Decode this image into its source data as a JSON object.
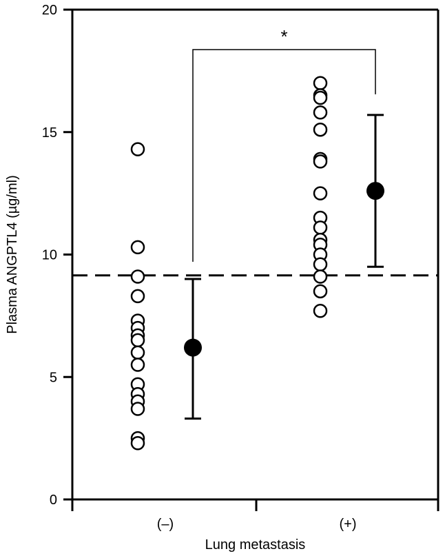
{
  "chart_data": {
    "type": "scatter",
    "title": "",
    "xlabel": "Lung metastasis",
    "ylabel": "Plasma ANGPTL4 (µg/ml)",
    "ylim": [
      0,
      20
    ],
    "yticks": [
      "0",
      "5",
      "10",
      "15",
      "20"
    ],
    "categories": [
      "(–)",
      "(+)"
    ],
    "grid": false,
    "legend": "none",
    "groups": [
      {
        "category": "(–)",
        "points": [
          14.3,
          10.3,
          9.1,
          8.3,
          7.3,
          7.0,
          6.7,
          6.5,
          6.0,
          5.5,
          4.7,
          4.3,
          4.0,
          3.7,
          2.5,
          2.3
        ],
        "mean": 6.2,
        "error_low": 3.3,
        "error_high": 9.0
      },
      {
        "category": "(+)",
        "points": [
          17.0,
          16.5,
          16.4,
          15.8,
          15.1,
          13.9,
          13.8,
          12.5,
          11.5,
          11.1,
          10.6,
          10.4,
          10.0,
          9.6,
          9.1,
          8.5,
          7.7
        ],
        "mean": 12.6,
        "error_low": 9.5,
        "error_high": 15.7
      }
    ],
    "reference_line": {
      "y": 9.15,
      "style": "dashed"
    },
    "significance": {
      "label": "*",
      "between": [
        "(–)",
        "(+)"
      ]
    },
    "colors": {
      "open_marker": "#000000",
      "filled_marker": "#000000",
      "line": "#000000"
    }
  }
}
